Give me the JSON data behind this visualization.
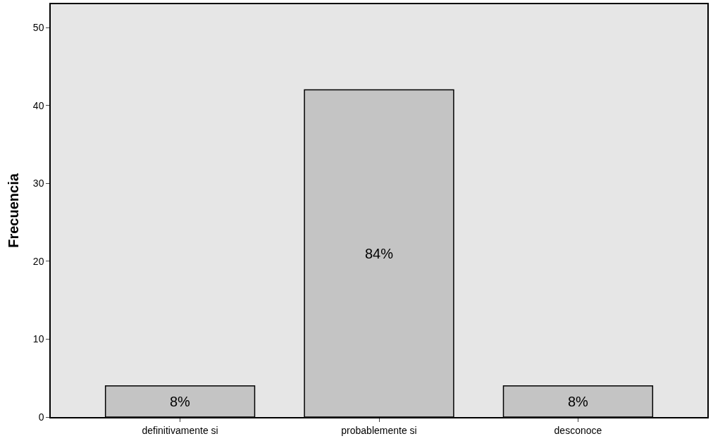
{
  "chart_data": {
    "type": "bar",
    "ylabel": "Frecuencia",
    "categories": [
      "definitivamente si",
      "probablemente si",
      "desconoce"
    ],
    "values": [
      4,
      42,
      4
    ],
    "annotations": [
      "8%",
      "84%",
      "8%"
    ],
    "color": "#c4c4c4",
    "ylim": [
      0,
      53
    ],
    "yticks": [
      0,
      10,
      20,
      30,
      40,
      50
    ],
    "grid": false,
    "legend": false
  }
}
